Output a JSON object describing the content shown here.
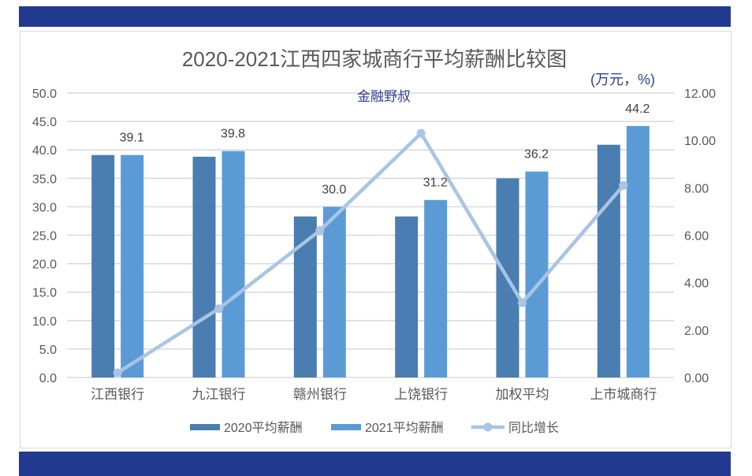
{
  "chart_data": {
    "type": "bar",
    "title": "2020-2021江西四家城商行平均薪酬比较图",
    "unit_label": "(万元，%)",
    "watermark": "金融野叔",
    "categories": [
      "江西银行",
      "九江银行",
      "赣州银行",
      "上饶银行",
      "加权平均",
      "上市城商行"
    ],
    "series": [
      {
        "name": "2020平均薪酬",
        "type": "bar",
        "axis": "left",
        "color": "#4a7db0",
        "values": [
          39.1,
          38.8,
          28.3,
          28.3,
          35.0,
          40.9
        ]
      },
      {
        "name": "2021平均薪酬",
        "type": "bar",
        "axis": "left",
        "color": "#5b9bd5",
        "values": [
          39.1,
          39.8,
          30.0,
          31.2,
          36.2,
          44.2
        ],
        "data_labels": [
          "39.1",
          "39.8",
          "30.0",
          "31.2",
          "36.2",
          "44.2"
        ]
      },
      {
        "name": "同比增长",
        "type": "line",
        "axis": "right",
        "color": "#a9c4e4",
        "values": [
          0.2,
          2.9,
          6.2,
          10.3,
          3.15,
          8.1
        ]
      }
    ],
    "y_left": {
      "min": 0,
      "max": 50,
      "ticks": [
        "0.0",
        "5.0",
        "10.0",
        "15.0",
        "20.0",
        "25.0",
        "30.0",
        "35.0",
        "40.0",
        "45.0",
        "50.0"
      ]
    },
    "y_right": {
      "min": 0,
      "max": 12,
      "ticks": [
        "0.00",
        "2.00",
        "4.00",
        "6.00",
        "8.00",
        "10.00",
        "12.00"
      ]
    },
    "grid": true,
    "legend": "bottom"
  },
  "colors": {
    "band": "#213a8f",
    "title": "#595959",
    "unit": "#2e3f8f"
  }
}
